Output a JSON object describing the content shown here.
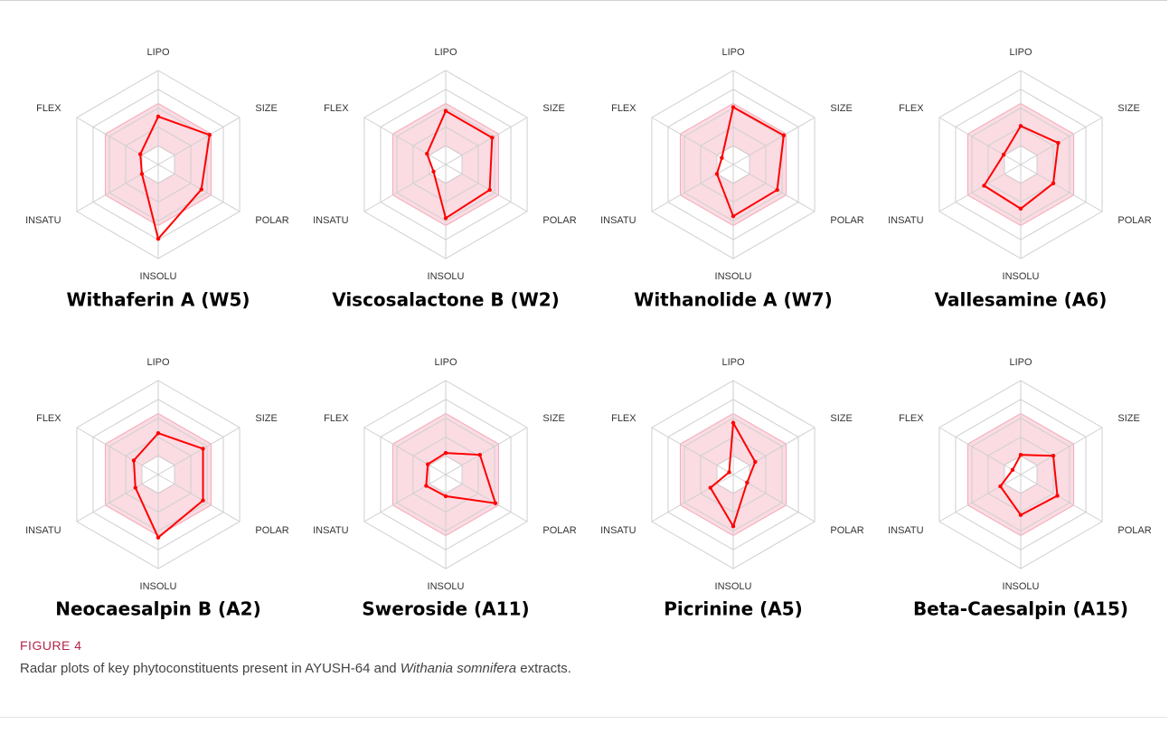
{
  "chart_data": [
    {
      "type": "radar",
      "title": "Withaferin A (W5)",
      "categories": [
        "LIPO",
        "SIZE",
        "POLAR",
        "INSOLU",
        "INSATU",
        "FLEX"
      ],
      "values": [
        0.51,
        0.63,
        0.53,
        0.79,
        0.2,
        0.22
      ],
      "color": "#ff0000",
      "rlim": [
        0,
        1
      ],
      "rticks": [
        0.2,
        0.4,
        0.6,
        0.8,
        1
      ],
      "optimal_range": [
        0.2,
        0.65
      ]
    },
    {
      "type": "radar",
      "title": "Viscosalactone B (W2)",
      "categories": [
        "LIPO",
        "SIZE",
        "POLAR",
        "INSOLU",
        "INSATU",
        "FLEX"
      ],
      "values": [
        0.57,
        0.57,
        0.54,
        0.57,
        0.15,
        0.23
      ],
      "color": "#ff0000",
      "rlim": [
        0,
        1
      ],
      "rticks": [
        0.2,
        0.4,
        0.6,
        0.8,
        1
      ],
      "optimal_range": [
        0.2,
        0.65
      ]
    },
    {
      "type": "radar",
      "title": "Withanolide A (W7)",
      "categories": [
        "LIPO",
        "SIZE",
        "POLAR",
        "INSOLU",
        "INSATU",
        "FLEX"
      ],
      "values": [
        0.61,
        0.62,
        0.54,
        0.55,
        0.2,
        0.14
      ],
      "color": "#ff0000",
      "rlim": [
        0,
        1
      ],
      "rticks": [
        0.2,
        0.4,
        0.6,
        0.8,
        1
      ],
      "optimal_range": [
        0.2,
        0.65
      ]
    },
    {
      "type": "radar",
      "title": "Vallesamine (A6)",
      "categories": [
        "LIPO",
        "SIZE",
        "POLAR",
        "INSOLU",
        "INSATU",
        "FLEX"
      ],
      "values": [
        0.41,
        0.46,
        0.4,
        0.47,
        0.45,
        0.21
      ],
      "color": "#ff0000",
      "rlim": [
        0,
        1
      ],
      "rticks": [
        0.2,
        0.4,
        0.6,
        0.8,
        1
      ],
      "optimal_range": [
        0.2,
        0.65
      ]
    },
    {
      "type": "radar",
      "title": "Neocaesalpin B (A2)",
      "categories": [
        "LIPO",
        "SIZE",
        "POLAR",
        "INSOLU",
        "INSATU",
        "FLEX"
      ],
      "values": [
        0.44,
        0.55,
        0.55,
        0.67,
        0.28,
        0.3
      ],
      "color": "#ff0000",
      "rlim": [
        0,
        1
      ],
      "rticks": [
        0.2,
        0.4,
        0.6,
        0.8,
        1
      ],
      "optimal_range": [
        0.2,
        0.65
      ]
    },
    {
      "type": "radar",
      "title": "Sweroside (A11)",
      "categories": [
        "LIPO",
        "SIZE",
        "POLAR",
        "INSOLU",
        "INSATU",
        "FLEX"
      ],
      "values": [
        0.23,
        0.42,
        0.61,
        0.23,
        0.24,
        0.22
      ],
      "color": "#ff0000",
      "rlim": [
        0,
        1
      ],
      "rticks": [
        0.2,
        0.4,
        0.6,
        0.8,
        1
      ],
      "optimal_range": [
        0.2,
        0.65
      ]
    },
    {
      "type": "radar",
      "title": "Picrinine (A5)",
      "categories": [
        "LIPO",
        "SIZE",
        "POLAR",
        "INSOLU",
        "INSATU",
        "FLEX"
      ],
      "values": [
        0.55,
        0.27,
        0.17,
        0.55,
        0.28,
        0.05
      ],
      "color": "#ff0000",
      "rlim": [
        0,
        1
      ],
      "rticks": [
        0.2,
        0.4,
        0.6,
        0.8,
        1
      ],
      "optimal_range": [
        0.2,
        0.65
      ]
    },
    {
      "type": "radar",
      "title": "Beta-Caesalpin (A15)",
      "categories": [
        "LIPO",
        "SIZE",
        "POLAR",
        "INSOLU",
        "INSATU",
        "FLEX"
      ],
      "values": [
        0.21,
        0.4,
        0.45,
        0.43,
        0.25,
        0.1
      ],
      "color": "#ff0000",
      "rlim": [
        0,
        1
      ],
      "rticks": [
        0.2,
        0.4,
        0.6,
        0.8,
        1
      ],
      "optimal_range": [
        0.2,
        0.65
      ]
    }
  ],
  "figure_label": "FIGURE 4",
  "caption": [
    "Radar plots of key phytoconstituents present in AYUSH-64 and ",
    "Withania somnifera",
    " extracts."
  ]
}
